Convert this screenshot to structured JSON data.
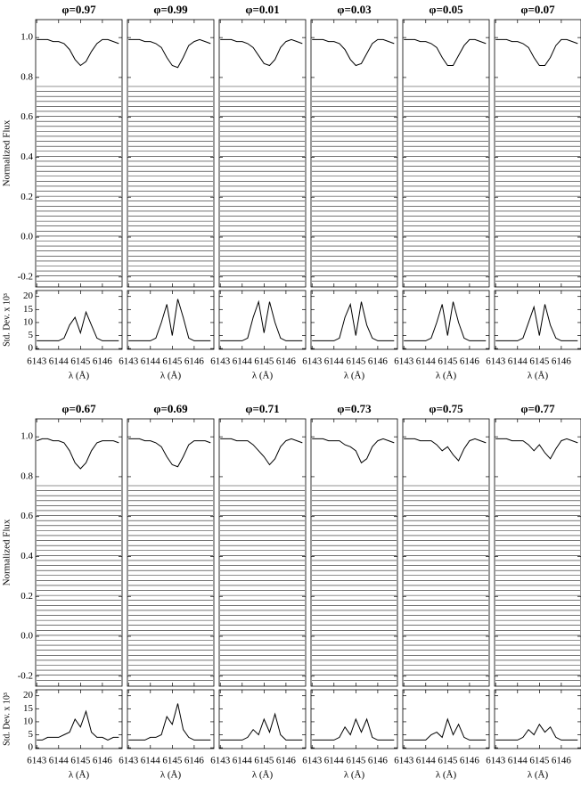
{
  "axes": {
    "x": [
      6143,
      6143.25,
      6143.5,
      6143.75,
      6144,
      6144.25,
      6144.5,
      6144.75,
      6145,
      6145.25,
      6145.5,
      6145.75,
      6146,
      6146.25,
      6146.5,
      6146.75
    ],
    "xlim": [
      6142.95,
      6146.9
    ],
    "xticks": [
      6143,
      6144,
      6145,
      6146
    ],
    "xlabel": "λ (Å)",
    "ylim": [
      -0.25,
      1.09
    ],
    "yticks": [
      {
        "value": -0.2,
        "label": "-0.2"
      },
      {
        "value": 0,
        "label": "0.0"
      },
      {
        "value": 0.2,
        "label": "0.2"
      },
      {
        "value": 0.4,
        "label": "0.4"
      },
      {
        "value": 0.6,
        "label": "0.6"
      },
      {
        "value": 0.8,
        "label": "0.8"
      },
      {
        "value": 1,
        "label": "1.0"
      }
    ],
    "y2lim": [
      -0.3,
      22.3
    ],
    "y2ticks": [
      0,
      5,
      10,
      15,
      20
    ]
  },
  "residual_offsets": [
    -0.22,
    -0.195,
    -0.17,
    -0.145,
    -0.12,
    -0.095,
    -0.07,
    -0.045,
    -0.02,
    0.005,
    0.03,
    0.055,
    0.08,
    0.105,
    0.13,
    0.155,
    0.18,
    0.205,
    0.23,
    0.255,
    0.28,
    0.305,
    0.33,
    0.355,
    0.38,
    0.405,
    0.43,
    0.455,
    0.48,
    0.505,
    0.53,
    0.555,
    0.58,
    0.605,
    0.63,
    0.655,
    0.68,
    0.705,
    0.73,
    0.755
  ],
  "chart_data": [
    {
      "type": "line",
      "title": "φ=0.97",
      "ylabel": "Normalized Flux",
      "y2label": "Std. Dev. x 10³",
      "profile": [
        0.99,
        0.99,
        0.99,
        0.98,
        0.98,
        0.97,
        0.94,
        0.89,
        0.86,
        0.88,
        0.93,
        0.97,
        0.99,
        0.99,
        0.98,
        0.97
      ],
      "std_dev": [
        3,
        3,
        3,
        3,
        3,
        4,
        9,
        12,
        6,
        14,
        9,
        4,
        3,
        3,
        3,
        3
      ]
    },
    {
      "type": "line",
      "title": "φ=0.99",
      "profile": [
        0.99,
        0.99,
        0.99,
        0.98,
        0.98,
        0.97,
        0.95,
        0.9,
        0.86,
        0.85,
        0.9,
        0.96,
        0.98,
        0.99,
        0.98,
        0.97
      ],
      "std_dev": [
        3,
        3,
        3,
        3,
        3,
        4,
        10,
        17,
        5,
        19,
        12,
        4,
        3,
        3,
        3,
        3
      ]
    },
    {
      "type": "line",
      "title": "φ=0.01",
      "profile": [
        0.99,
        0.99,
        0.99,
        0.98,
        0.98,
        0.97,
        0.95,
        0.91,
        0.87,
        0.86,
        0.89,
        0.95,
        0.98,
        0.99,
        0.98,
        0.97
      ],
      "std_dev": [
        3,
        3,
        3,
        3,
        3,
        4,
        12,
        18,
        6,
        18,
        10,
        4,
        3,
        3,
        3,
        3
      ]
    },
    {
      "type": "line",
      "title": "φ=0.03",
      "profile": [
        0.99,
        0.99,
        0.99,
        0.98,
        0.98,
        0.97,
        0.94,
        0.89,
        0.86,
        0.87,
        0.92,
        0.97,
        0.99,
        0.99,
        0.98,
        0.97
      ],
      "std_dev": [
        3,
        3,
        3,
        3,
        3,
        4,
        12,
        17,
        5,
        18,
        9,
        4,
        3,
        3,
        3,
        3
      ]
    },
    {
      "type": "line",
      "title": "φ=0.05",
      "profile": [
        0.99,
        0.99,
        0.99,
        0.98,
        0.98,
        0.97,
        0.95,
        0.9,
        0.86,
        0.86,
        0.91,
        0.96,
        0.99,
        0.99,
        0.98,
        0.97
      ],
      "std_dev": [
        3,
        3,
        3,
        3,
        3,
        4,
        10,
        17,
        5,
        18,
        10,
        4,
        3,
        3,
        3,
        3
      ]
    },
    {
      "type": "line",
      "title": "φ=0.07",
      "profile": [
        0.99,
        0.99,
        0.99,
        0.98,
        0.98,
        0.97,
        0.95,
        0.9,
        0.86,
        0.86,
        0.9,
        0.96,
        0.99,
        0.99,
        0.98,
        0.97
      ],
      "std_dev": [
        3,
        3,
        3,
        3,
        3,
        4,
        10,
        16,
        5,
        17,
        9,
        4,
        3,
        3,
        3,
        3
      ]
    },
    {
      "type": "line",
      "title": "φ=0.67",
      "ylabel": "Normalized Flux",
      "y2label": "Std. Dev. x 10³",
      "profile": [
        0.98,
        0.99,
        0.99,
        0.98,
        0.98,
        0.97,
        0.93,
        0.87,
        0.84,
        0.87,
        0.93,
        0.97,
        0.98,
        0.98,
        0.98,
        0.97
      ],
      "std_dev": [
        3,
        3,
        4,
        4,
        4,
        5,
        6,
        11,
        8,
        14,
        6,
        4,
        4,
        3,
        4,
        4
      ]
    },
    {
      "type": "line",
      "title": "φ=0.69",
      "profile": [
        0.99,
        0.99,
        0.99,
        0.98,
        0.98,
        0.97,
        0.95,
        0.9,
        0.86,
        0.85,
        0.9,
        0.96,
        0.98,
        0.98,
        0.98,
        0.97
      ],
      "std_dev": [
        3,
        3,
        3,
        3,
        4,
        4,
        5,
        12,
        9,
        17,
        7,
        4,
        3,
        3,
        3,
        3
      ]
    },
    {
      "type": "line",
      "title": "φ=0.71",
      "profile": [
        0.99,
        0.99,
        0.99,
        0.98,
        0.98,
        0.98,
        0.96,
        0.93,
        0.9,
        0.86,
        0.89,
        0.95,
        0.98,
        0.99,
        0.98,
        0.97
      ],
      "std_dev": [
        3,
        3,
        3,
        3,
        3,
        4,
        7,
        5,
        11,
        6,
        13,
        5,
        3,
        3,
        3,
        3
      ]
    },
    {
      "type": "line",
      "title": "φ=0.73",
      "profile": [
        0.99,
        0.99,
        0.99,
        0.98,
        0.98,
        0.98,
        0.96,
        0.95,
        0.93,
        0.87,
        0.89,
        0.95,
        0.98,
        0.99,
        0.98,
        0.97
      ],
      "std_dev": [
        3,
        3,
        3,
        3,
        3,
        4,
        8,
        5,
        11,
        6,
        11,
        4,
        3,
        3,
        3,
        3
      ]
    },
    {
      "type": "line",
      "title": "φ=0.75",
      "profile": [
        0.99,
        0.99,
        0.99,
        0.98,
        0.98,
        0.98,
        0.96,
        0.93,
        0.95,
        0.91,
        0.88,
        0.94,
        0.98,
        0.99,
        0.98,
        0.97
      ],
      "std_dev": [
        3,
        3,
        3,
        3,
        3,
        5,
        6,
        4,
        11,
        5,
        9,
        4,
        3,
        3,
        3,
        3
      ]
    },
    {
      "type": "line",
      "title": "φ=0.77",
      "profile": [
        0.99,
        0.99,
        0.99,
        0.98,
        0.98,
        0.98,
        0.96,
        0.93,
        0.96,
        0.92,
        0.89,
        0.94,
        0.98,
        0.99,
        0.98,
        0.97
      ],
      "std_dev": [
        3,
        3,
        3,
        3,
        3,
        4,
        7,
        5,
        9,
        6,
        8,
        4,
        3,
        3,
        3,
        3
      ]
    }
  ]
}
